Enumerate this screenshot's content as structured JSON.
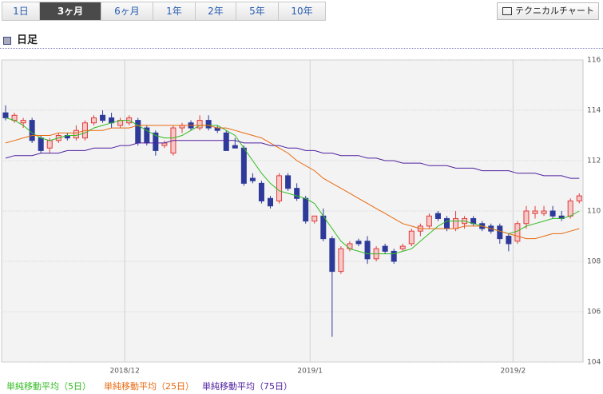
{
  "tabs": [
    "1日",
    "3ヶ月",
    "6ヶ月",
    "1年",
    "2年",
    "5年",
    "10年"
  ],
  "active_tab": 1,
  "button": "テクニカルチャート",
  "header": "日足",
  "chart_data": {
    "type": "candlestick",
    "categories": [
      null,
      null,
      null,
      null,
      null,
      null,
      null,
      null,
      null,
      null,
      null,
      null,
      null,
      null,
      "2018/12",
      null,
      null,
      null,
      null,
      null,
      null,
      null,
      null,
      null,
      null,
      null,
      null,
      null,
      null,
      null,
      null,
      null,
      null,
      null,
      null,
      "2019/1",
      null,
      null,
      null,
      null,
      null,
      null,
      null,
      null,
      null,
      null,
      null,
      null,
      null,
      null,
      null,
      null,
      null,
      null,
      null,
      null,
      null,
      null,
      "2019/2",
      null,
      null,
      null,
      null,
      null,
      null,
      null
    ],
    "open": [
      113.9,
      113.6,
      113.5,
      113.6,
      112.9,
      112.5,
      112.8,
      113.0,
      112.9,
      112.9,
      113.5,
      113.8,
      113.7,
      113.4,
      113.5,
      113.6,
      113.3,
      113.1,
      112.6,
      112.3,
      113.3,
      113.5,
      113.3,
      113.6,
      113.3,
      113.1,
      112.6,
      112.5,
      111.3,
      111.1,
      110.5,
      110.4,
      111.4,
      110.9,
      110.5,
      109.6,
      109.8,
      108.9,
      107.6,
      108.5,
      108.8,
      108.8,
      108.1,
      108.6,
      108.4,
      108.5,
      108.7,
      109.2,
      109.4,
      109.9,
      109.7,
      109.3,
      109.5,
      109.7,
      109.5,
      109.4,
      109.4,
      109.0,
      108.8,
      109.5,
      109.9,
      109.9,
      110.0,
      109.8,
      109.8,
      110.4
    ],
    "high": [
      114.2,
      113.9,
      113.7,
      113.7,
      113.0,
      112.9,
      113.1,
      113.1,
      113.4,
      113.6,
      113.8,
      114.0,
      113.9,
      113.7,
      113.8,
      113.7,
      113.4,
      113.2,
      112.8,
      113.4,
      113.5,
      113.6,
      113.8,
      113.8,
      113.4,
      113.2,
      112.9,
      112.6,
      111.5,
      111.2,
      110.6,
      111.5,
      111.5,
      111.1,
      110.6,
      109.8,
      110.1,
      109.0,
      108.6,
      108.8,
      108.9,
      109.0,
      108.6,
      108.7,
      108.5,
      108.7,
      109.3,
      109.5,
      109.9,
      110.0,
      109.8,
      110.0,
      109.8,
      109.8,
      109.6,
      109.5,
      109.5,
      109.1,
      109.6,
      110.2,
      110.2,
      110.2,
      110.2,
      110.0,
      110.5,
      110.7
    ],
    "low": [
      113.6,
      113.5,
      113.3,
      112.7,
      112.3,
      112.3,
      112.7,
      112.8,
      112.8,
      112.8,
      113.4,
      113.5,
      113.3,
      113.3,
      113.4,
      112.6,
      112.6,
      112.2,
      112.5,
      112.2,
      113.1,
      113.2,
      113.2,
      113.2,
      113.1,
      112.4,
      112.5,
      111.0,
      111.1,
      110.3,
      110.1,
      110.3,
      110.8,
      110.4,
      109.5,
      109.5,
      108.8,
      105.0,
      107.5,
      108.4,
      108.6,
      107.9,
      108.0,
      108.3,
      107.9,
      108.4,
      108.6,
      109.0,
      109.3,
      109.6,
      109.2,
      109.2,
      109.3,
      109.4,
      109.2,
      109.1,
      108.7,
      108.4,
      108.7,
      109.3,
      109.7,
      109.8,
      109.7,
      109.6,
      109.7,
      110.3
    ],
    "close": [
      113.7,
      113.8,
      113.6,
      112.8,
      112.4,
      112.8,
      113.0,
      112.9,
      113.2,
      113.5,
      113.7,
      113.6,
      113.5,
      113.6,
      113.7,
      112.7,
      112.7,
      112.4,
      112.7,
      113.3,
      113.4,
      113.3,
      113.6,
      113.3,
      113.2,
      112.4,
      112.5,
      111.1,
      111.2,
      110.4,
      110.2,
      111.4,
      110.9,
      110.5,
      109.6,
      109.8,
      108.9,
      107.6,
      108.5,
      108.7,
      108.7,
      108.1,
      108.5,
      108.4,
      108.0,
      108.6,
      109.2,
      109.4,
      109.8,
      109.7,
      109.3,
      109.7,
      109.7,
      109.5,
      109.3,
      109.2,
      108.9,
      108.7,
      109.5,
      110.0,
      110.0,
      110.0,
      109.8,
      109.7,
      110.4,
      110.6
    ],
    "up_color": "#e03c3c",
    "down_color": "#2e3a9a",
    "series": [
      {
        "name": "単純移動平均（5日）",
        "color": "#33bb22",
        "values": [
          113.7,
          113.6,
          113.4,
          113.1,
          112.9,
          112.8,
          112.9,
          113.0,
          113.0,
          113.1,
          113.3,
          113.4,
          113.5,
          113.6,
          113.6,
          113.4,
          113.2,
          113.0,
          112.9,
          112.9,
          113.0,
          113.2,
          113.4,
          113.4,
          113.4,
          113.2,
          113.0,
          112.5,
          112.0,
          111.5,
          111.1,
          110.8,
          110.7,
          110.6,
          110.5,
          110.3,
          109.8,
          109.3,
          108.8,
          108.5,
          108.4,
          108.3,
          108.3,
          108.3,
          108.3,
          108.4,
          108.5,
          108.8,
          109.1,
          109.4,
          109.6,
          109.6,
          109.6,
          109.5,
          109.4,
          109.3,
          109.2,
          109.1,
          109.2,
          109.4,
          109.5,
          109.6,
          109.7,
          109.7,
          109.8,
          110.0
        ]
      },
      {
        "name": "単純移動平均（25日）",
        "color": "#e86a10",
        "values": [
          112.7,
          112.8,
          112.9,
          113.0,
          113.0,
          113.0,
          113.1,
          113.1,
          113.1,
          113.2,
          113.2,
          113.2,
          113.3,
          113.3,
          113.3,
          113.4,
          113.4,
          113.4,
          113.4,
          113.4,
          113.4,
          113.4,
          113.4,
          113.4,
          113.3,
          113.3,
          113.2,
          113.1,
          113.0,
          112.9,
          112.7,
          112.5,
          112.3,
          112.0,
          111.8,
          111.6,
          111.3,
          111.1,
          110.9,
          110.7,
          110.5,
          110.3,
          110.1,
          109.9,
          109.7,
          109.5,
          109.4,
          109.3,
          109.3,
          109.3,
          109.3,
          109.3,
          109.4,
          109.4,
          109.4,
          109.3,
          109.2,
          109.1,
          109.0,
          108.9,
          108.9,
          109.0,
          109.1,
          109.1,
          109.2,
          109.3
        ]
      },
      {
        "name": "単純移動平均（75日）",
        "color": "#5020a0",
        "values": [
          112.1,
          112.2,
          112.2,
          112.2,
          112.3,
          112.3,
          112.3,
          112.4,
          112.4,
          112.4,
          112.5,
          112.5,
          112.5,
          112.6,
          112.6,
          112.7,
          112.7,
          112.7,
          112.7,
          112.8,
          112.8,
          112.8,
          112.8,
          112.8,
          112.8,
          112.8,
          112.8,
          112.7,
          112.7,
          112.7,
          112.6,
          112.6,
          112.5,
          112.5,
          112.4,
          112.4,
          112.3,
          112.3,
          112.2,
          112.2,
          112.2,
          112.1,
          112.1,
          112.0,
          112.0,
          111.9,
          111.9,
          111.9,
          111.8,
          111.8,
          111.8,
          111.7,
          111.7,
          111.7,
          111.6,
          111.6,
          111.6,
          111.6,
          111.5,
          111.5,
          111.5,
          111.4,
          111.4,
          111.4,
          111.3,
          111.3
        ]
      }
    ],
    "ylim": [
      104,
      116
    ],
    "yticks": [
      104,
      106,
      108,
      110,
      112,
      114,
      116
    ],
    "grid": true
  }
}
